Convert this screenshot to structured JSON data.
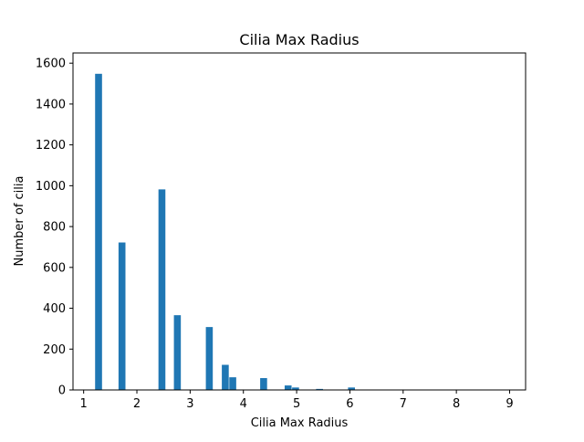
{
  "chart_data": {
    "type": "bar",
    "title": "Cilia Max Radius",
    "xlabel": "Cilia Max Radius",
    "ylabel": "Number of cilia",
    "xlim": [
      0.8,
      9.3
    ],
    "ylim": [
      0,
      1650
    ],
    "xticks": [
      1,
      2,
      3,
      4,
      5,
      6,
      7,
      8,
      9
    ],
    "yticks": [
      0,
      200,
      400,
      600,
      800,
      1000,
      1200,
      1400,
      1600
    ],
    "bin_width": 0.13,
    "bins": [
      {
        "x": 1.28,
        "value": 1548
      },
      {
        "x": 1.72,
        "value": 722
      },
      {
        "x": 2.47,
        "value": 982
      },
      {
        "x": 2.76,
        "value": 366
      },
      {
        "x": 3.36,
        "value": 308
      },
      {
        "x": 3.66,
        "value": 123
      },
      {
        "x": 3.8,
        "value": 62
      },
      {
        "x": 4.38,
        "value": 58
      },
      {
        "x": 4.84,
        "value": 22
      },
      {
        "x": 4.98,
        "value": 12
      },
      {
        "x": 5.43,
        "value": 5
      },
      {
        "x": 6.03,
        "value": 12
      },
      {
        "x": 9.0,
        "value": 1
      }
    ],
    "color": "#1f77b4",
    "grid": false,
    "legend": "none"
  }
}
